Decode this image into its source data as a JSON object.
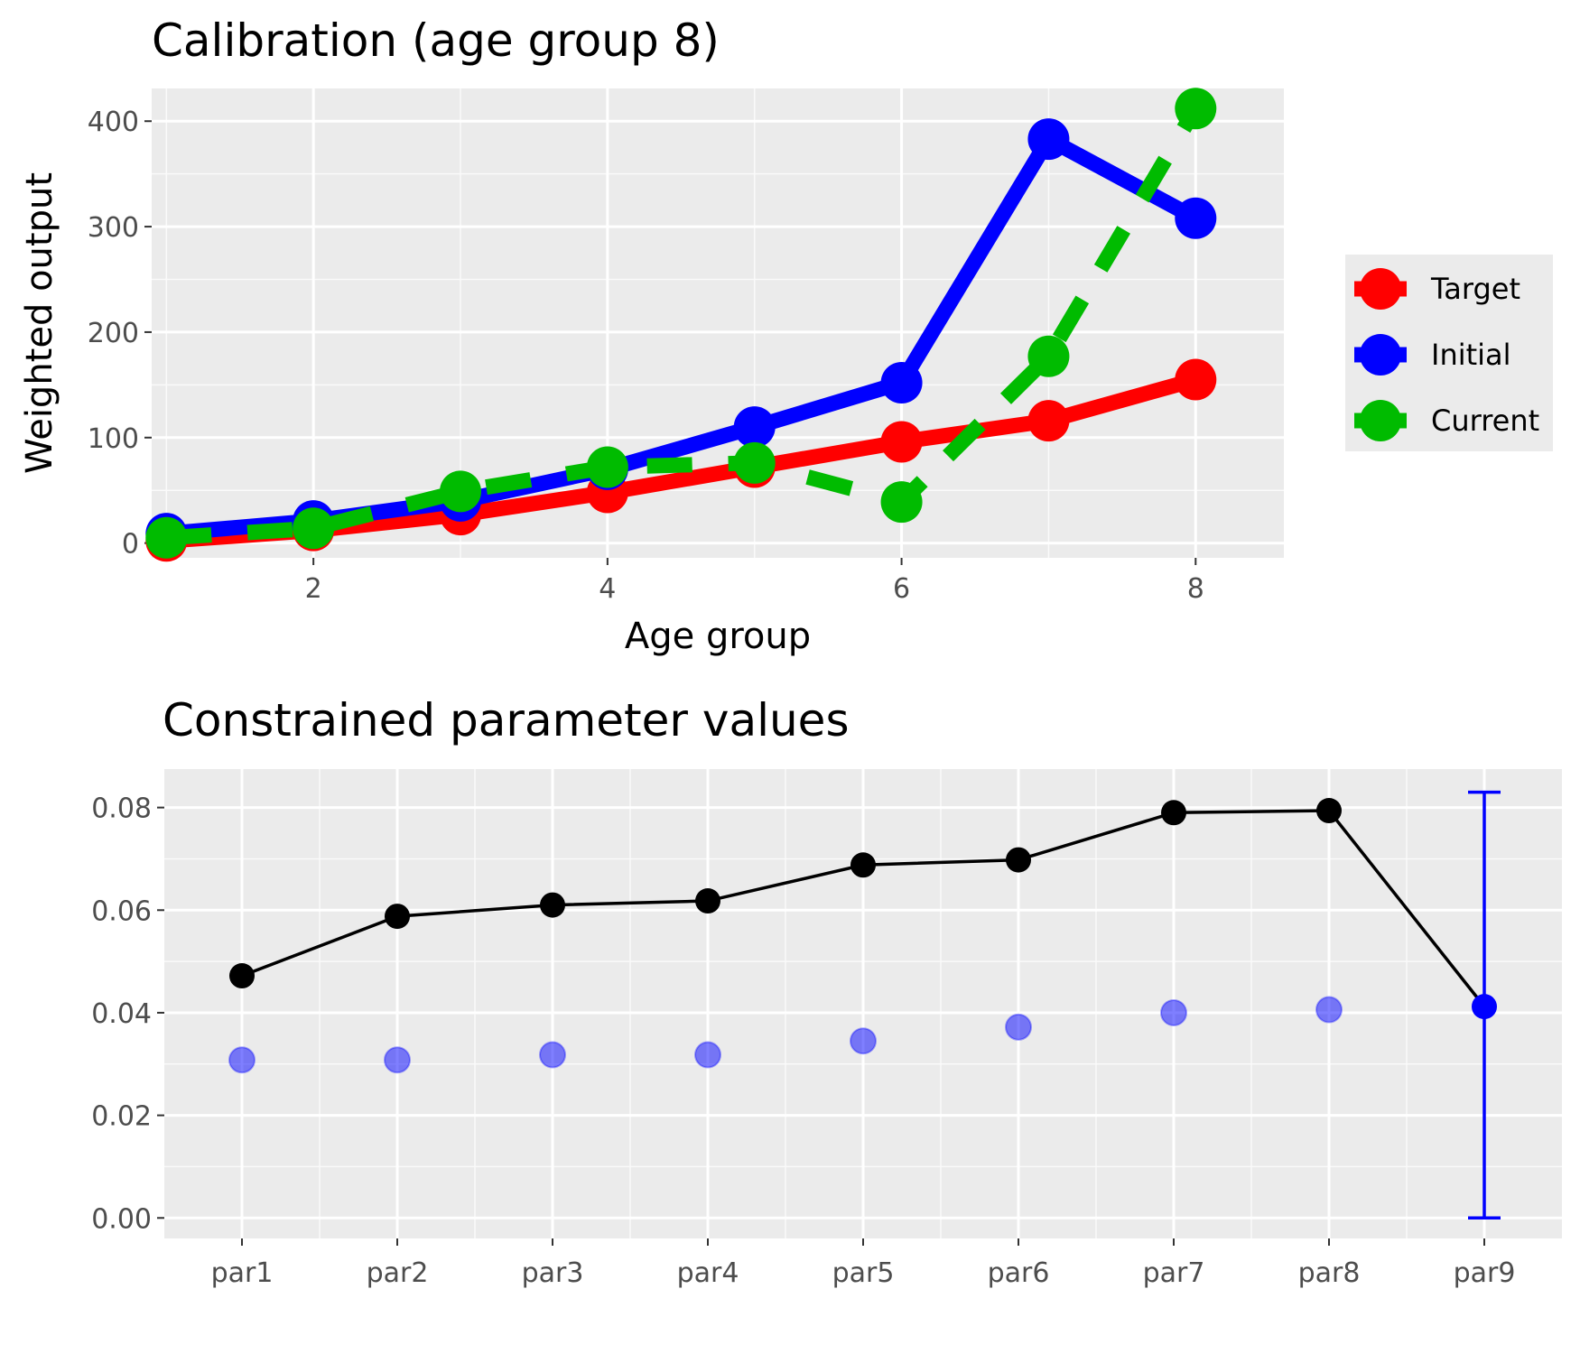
{
  "chart_data": [
    {
      "type": "line",
      "title": "Calibration (age group 8)",
      "xlabel": "Age group",
      "ylabel": "Weighted output",
      "xlim": [
        0.9,
        8.6
      ],
      "ylim": [
        -14,
        431
      ],
      "x": [
        1,
        2,
        3,
        4,
        5,
        6,
        7,
        8
      ],
      "x_ticks": [
        2,
        4,
        6,
        8
      ],
      "y_ticks": [
        0,
        100,
        200,
        300,
        400
      ],
      "grid": true,
      "legend_position": "right",
      "series": [
        {
          "name": "Target",
          "color": "#ff0000",
          "dashed": false,
          "values": [
            2,
            12,
            27,
            48,
            72,
            96,
            116,
            155
          ]
        },
        {
          "name": "Initial",
          "color": "#0000ff",
          "dashed": false,
          "values": [
            9,
            21,
            40,
            70,
            110,
            152,
            383,
            308
          ]
        },
        {
          "name": "Current",
          "color": "#00bb00",
          "dashed": true,
          "values": [
            5,
            14,
            49,
            72,
            76,
            39,
            177,
            412
          ]
        }
      ]
    },
    {
      "type": "scatter",
      "title": "Constrained parameter values",
      "xlabel": "",
      "ylabel": "",
      "categories": [
        "par1",
        "par2",
        "par3",
        "par4",
        "par5",
        "par6",
        "par7",
        "par8",
        "par9"
      ],
      "ylim": [
        -0.004,
        0.0875
      ],
      "y_ticks": [
        0.0,
        0.02,
        0.04,
        0.06,
        0.08
      ],
      "y_tick_labels": [
        "0.00",
        "0.02",
        "0.04",
        "0.06",
        "0.08"
      ],
      "grid": true,
      "series": [
        {
          "color": "#000000",
          "line": true,
          "values": [
            0.0472,
            0.0588,
            0.061,
            0.0618,
            0.0688,
            0.0698,
            0.079,
            0.0794,
            null
          ]
        },
        {
          "color": "#0000ff",
          "line": false,
          "alpha": 0.5,
          "values": [
            0.0308,
            0.0308,
            0.0318,
            0.0318,
            0.0345,
            0.0372,
            0.04,
            0.0406,
            null
          ]
        },
        {
          "color": "#0000ff",
          "line": false,
          "alpha": 1.0,
          "values": [
            null,
            null,
            null,
            null,
            null,
            null,
            null,
            null,
            0.0412
          ]
        }
      ],
      "error_bar": {
        "category": "par9",
        "low": 0.0,
        "high": 0.083,
        "color": "#0000ff"
      }
    }
  ]
}
